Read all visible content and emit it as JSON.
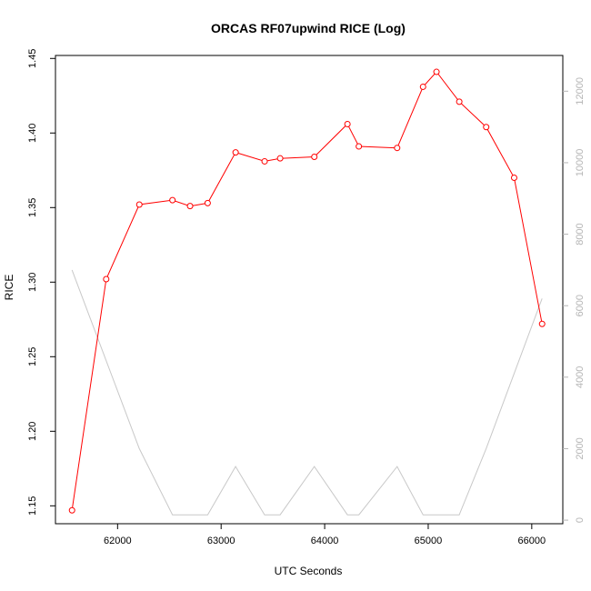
{
  "chart_data": {
    "type": "line",
    "title": "ORCAS RF07upwind RICE (Log)",
    "xlabel": "UTC Seconds",
    "ylabel": "RICE",
    "xlim": [
      61400,
      66300
    ],
    "ylim": [
      1.138,
      1.452
    ],
    "y2lim": [
      -100,
      13000
    ],
    "x_ticks": [
      62000,
      63000,
      64000,
      65000,
      66000
    ],
    "y_ticks": [
      1.15,
      1.2,
      1.25,
      1.3,
      1.35,
      1.4,
      1.45
    ],
    "y2_ticks": [
      0,
      2000,
      4000,
      6000,
      8000,
      10000,
      12000
    ],
    "grid": false,
    "series": [
      {
        "axis": "left",
        "color": "#ff0000",
        "markers": "open-circle",
        "x": [
          61560,
          61890,
          62210,
          62530,
          62700,
          62870,
          63140,
          63420,
          63570,
          63900,
          64220,
          64330,
          64700,
          64950,
          65080,
          65300,
          65560,
          65830,
          66100
        ],
        "y": [
          1.147,
          1.302,
          1.352,
          1.355,
          1.351,
          1.353,
          1.387,
          1.381,
          1.383,
          1.384,
          1.406,
          1.391,
          1.39,
          1.431,
          1.441,
          1.421,
          1.404,
          1.37,
          1.272
        ]
      },
      {
        "axis": "right",
        "color": "#c8c8c8",
        "markers": "none",
        "x": [
          61560,
          62210,
          62530,
          62870,
          63140,
          63420,
          63570,
          63900,
          64220,
          64330,
          64700,
          64950,
          65300,
          65560,
          66100
        ],
        "y": [
          7000,
          2000,
          150,
          150,
          1500,
          150,
          150,
          1500,
          150,
          150,
          1500,
          150,
          150,
          2000,
          6200
        ]
      }
    ]
  }
}
